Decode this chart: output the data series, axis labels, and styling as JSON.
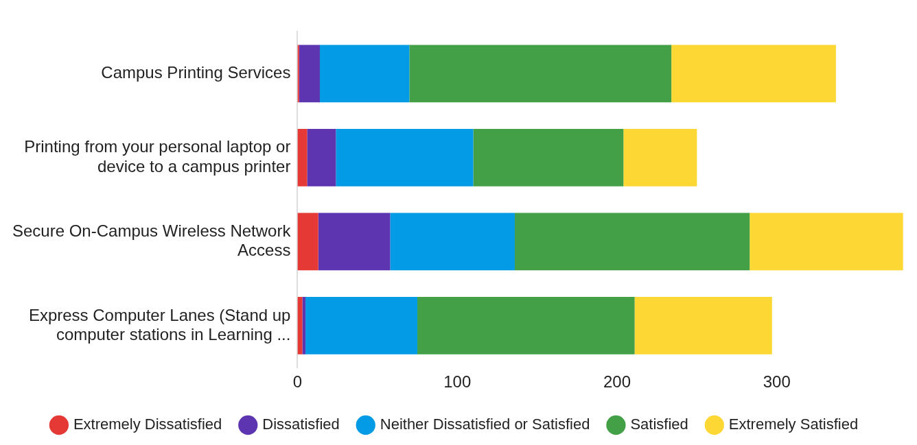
{
  "chart_data": {
    "type": "bar",
    "orientation": "horizontal",
    "stacked": true,
    "categories": [
      "Campus Printing Services",
      "Printing from your personal laptop or device to a campus printer",
      "Secure On-Campus Wireless Network Access",
      "Express Computer Lanes (Stand up computer stations in Learning ..."
    ],
    "series": [
      {
        "name": "Extremely Dissatisfied",
        "color": "#e53935",
        "values": [
          1,
          6,
          13,
          3
        ]
      },
      {
        "name": "Dissatisfied",
        "color": "#5e35b1",
        "values": [
          13,
          18,
          45,
          2
        ]
      },
      {
        "name": "Neither Dissatisfied or Satisfied",
        "color": "#039be5",
        "values": [
          56,
          86,
          78,
          70
        ]
      },
      {
        "name": "Satisfied",
        "color": "#43a047",
        "values": [
          164,
          94,
          147,
          136
        ]
      },
      {
        "name": "Extremely Satisfied",
        "color": "#fdd835",
        "values": [
          103,
          46,
          96,
          86
        ]
      }
    ],
    "xlim": [
      0,
      380
    ],
    "xticks": [
      0,
      100,
      200,
      300
    ],
    "legend": "bottom"
  }
}
